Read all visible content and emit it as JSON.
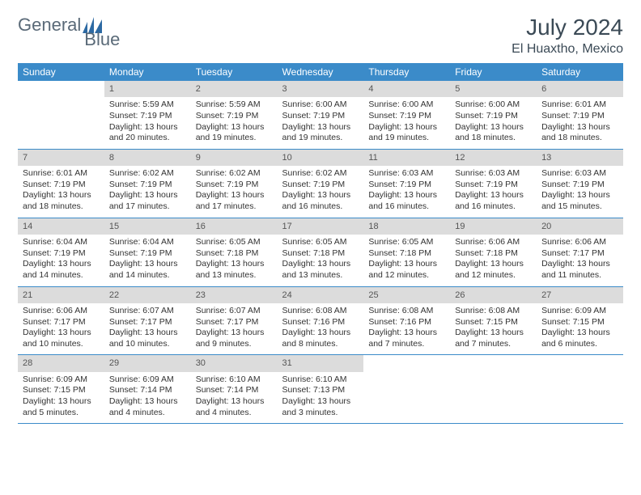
{
  "header": {
    "logo_text_a": "General",
    "logo_text_b": "Blue",
    "month_year": "July 2024",
    "location": "El Huaxtho, Mexico"
  },
  "styling": {
    "header_bg": "#3b8bc9",
    "header_text": "#ffffff",
    "daynum_bg": "#dcdcdc",
    "daynum_text": "#555555",
    "border_color": "#3b8bc9",
    "body_text": "#333333",
    "title_text": "#3b4a56",
    "logo_accent": "#2d6aa3",
    "font_family": "Arial",
    "month_fontsize": 28,
    "location_fontsize": 16,
    "dayhead_fontsize": 12,
    "daynum_fontsize": 11,
    "cell_fontsize": 10.5
  },
  "calendar": {
    "type": "table",
    "columns": [
      "Sunday",
      "Monday",
      "Tuesday",
      "Wednesday",
      "Thursday",
      "Friday",
      "Saturday"
    ],
    "weeks": [
      [
        null,
        {
          "n": "1",
          "sr": "5:59 AM",
          "ss": "7:19 PM",
          "dh": "13",
          "dm": "20"
        },
        {
          "n": "2",
          "sr": "5:59 AM",
          "ss": "7:19 PM",
          "dh": "13",
          "dm": "19"
        },
        {
          "n": "3",
          "sr": "6:00 AM",
          "ss": "7:19 PM",
          "dh": "13",
          "dm": "19"
        },
        {
          "n": "4",
          "sr": "6:00 AM",
          "ss": "7:19 PM",
          "dh": "13",
          "dm": "19"
        },
        {
          "n": "5",
          "sr": "6:00 AM",
          "ss": "7:19 PM",
          "dh": "13",
          "dm": "18"
        },
        {
          "n": "6",
          "sr": "6:01 AM",
          "ss": "7:19 PM",
          "dh": "13",
          "dm": "18"
        }
      ],
      [
        {
          "n": "7",
          "sr": "6:01 AM",
          "ss": "7:19 PM",
          "dh": "13",
          "dm": "18"
        },
        {
          "n": "8",
          "sr": "6:02 AM",
          "ss": "7:19 PM",
          "dh": "13",
          "dm": "17"
        },
        {
          "n": "9",
          "sr": "6:02 AM",
          "ss": "7:19 PM",
          "dh": "13",
          "dm": "17"
        },
        {
          "n": "10",
          "sr": "6:02 AM",
          "ss": "7:19 PM",
          "dh": "13",
          "dm": "16"
        },
        {
          "n": "11",
          "sr": "6:03 AM",
          "ss": "7:19 PM",
          "dh": "13",
          "dm": "16"
        },
        {
          "n": "12",
          "sr": "6:03 AM",
          "ss": "7:19 PM",
          "dh": "13",
          "dm": "16"
        },
        {
          "n": "13",
          "sr": "6:03 AM",
          "ss": "7:19 PM",
          "dh": "13",
          "dm": "15"
        }
      ],
      [
        {
          "n": "14",
          "sr": "6:04 AM",
          "ss": "7:19 PM",
          "dh": "13",
          "dm": "14"
        },
        {
          "n": "15",
          "sr": "6:04 AM",
          "ss": "7:19 PM",
          "dh": "13",
          "dm": "14"
        },
        {
          "n": "16",
          "sr": "6:05 AM",
          "ss": "7:18 PM",
          "dh": "13",
          "dm": "13"
        },
        {
          "n": "17",
          "sr": "6:05 AM",
          "ss": "7:18 PM",
          "dh": "13",
          "dm": "13"
        },
        {
          "n": "18",
          "sr": "6:05 AM",
          "ss": "7:18 PM",
          "dh": "13",
          "dm": "12"
        },
        {
          "n": "19",
          "sr": "6:06 AM",
          "ss": "7:18 PM",
          "dh": "13",
          "dm": "12"
        },
        {
          "n": "20",
          "sr": "6:06 AM",
          "ss": "7:17 PM",
          "dh": "13",
          "dm": "11"
        }
      ],
      [
        {
          "n": "21",
          "sr": "6:06 AM",
          "ss": "7:17 PM",
          "dh": "13",
          "dm": "10"
        },
        {
          "n": "22",
          "sr": "6:07 AM",
          "ss": "7:17 PM",
          "dh": "13",
          "dm": "10"
        },
        {
          "n": "23",
          "sr": "6:07 AM",
          "ss": "7:17 PM",
          "dh": "13",
          "dm": "9"
        },
        {
          "n": "24",
          "sr": "6:08 AM",
          "ss": "7:16 PM",
          "dh": "13",
          "dm": "8"
        },
        {
          "n": "25",
          "sr": "6:08 AM",
          "ss": "7:16 PM",
          "dh": "13",
          "dm": "7"
        },
        {
          "n": "26",
          "sr": "6:08 AM",
          "ss": "7:15 PM",
          "dh": "13",
          "dm": "7"
        },
        {
          "n": "27",
          "sr": "6:09 AM",
          "ss": "7:15 PM",
          "dh": "13",
          "dm": "6"
        }
      ],
      [
        {
          "n": "28",
          "sr": "6:09 AM",
          "ss": "7:15 PM",
          "dh": "13",
          "dm": "5"
        },
        {
          "n": "29",
          "sr": "6:09 AM",
          "ss": "7:14 PM",
          "dh": "13",
          "dm": "4"
        },
        {
          "n": "30",
          "sr": "6:10 AM",
          "ss": "7:14 PM",
          "dh": "13",
          "dm": "4"
        },
        {
          "n": "31",
          "sr": "6:10 AM",
          "ss": "7:13 PM",
          "dh": "13",
          "dm": "3"
        },
        null,
        null,
        null
      ]
    ],
    "labels": {
      "sunrise": "Sunrise:",
      "sunset": "Sunset:",
      "daylight_prefix": "Daylight:",
      "hours_word": "hours",
      "and_word": "and",
      "minutes_word": "minutes."
    }
  }
}
